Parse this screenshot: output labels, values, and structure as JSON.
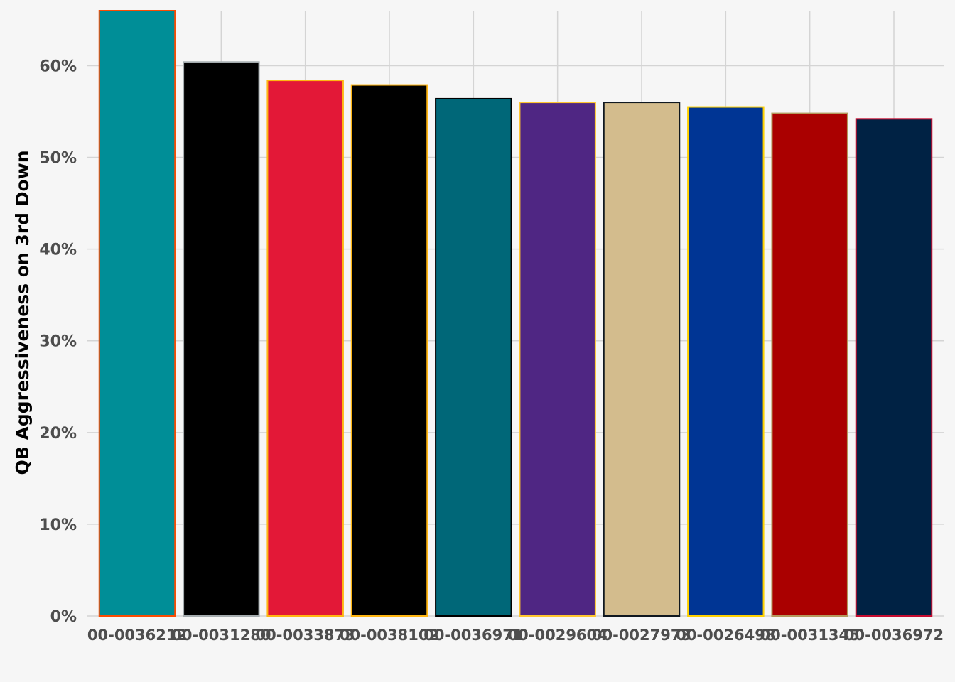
{
  "chart_data": {
    "type": "bar",
    "title": "",
    "xlabel": "",
    "ylabel": "QB Aggressiveness on 3rd Down",
    "ylim": [
      0,
      0.66
    ],
    "yticks": [
      0,
      0.1,
      0.2,
      0.3,
      0.4,
      0.5,
      0.6
    ],
    "ytick_labels": [
      "0%",
      "10%",
      "20%",
      "30%",
      "40%",
      "50%",
      "60%"
    ],
    "grid": true,
    "categories": [
      "00-0036212",
      "00-0031280",
      "00-0033873",
      "00-0038102",
      "00-0036971",
      "00-0029604",
      "00-0027973",
      "00-0026498",
      "00-0031345",
      "00-0036972"
    ],
    "values": [
      0.66,
      0.604,
      0.584,
      0.579,
      0.564,
      0.56,
      0.56,
      0.555,
      0.548,
      0.542
    ],
    "fills": [
      "#008E97",
      "#000000",
      "#E31837",
      "#000000",
      "#006778",
      "#4F2683",
      "#D3BC8D",
      "#003594",
      "#AA0000",
      "#002244"
    ],
    "outlines": [
      "#FC4C02",
      "#A5ACAF",
      "#FFB612",
      "#FFB612",
      "#000000",
      "#FFC62F",
      "#101820",
      "#FFD100",
      "#B3995D",
      "#C60C30"
    ]
  }
}
